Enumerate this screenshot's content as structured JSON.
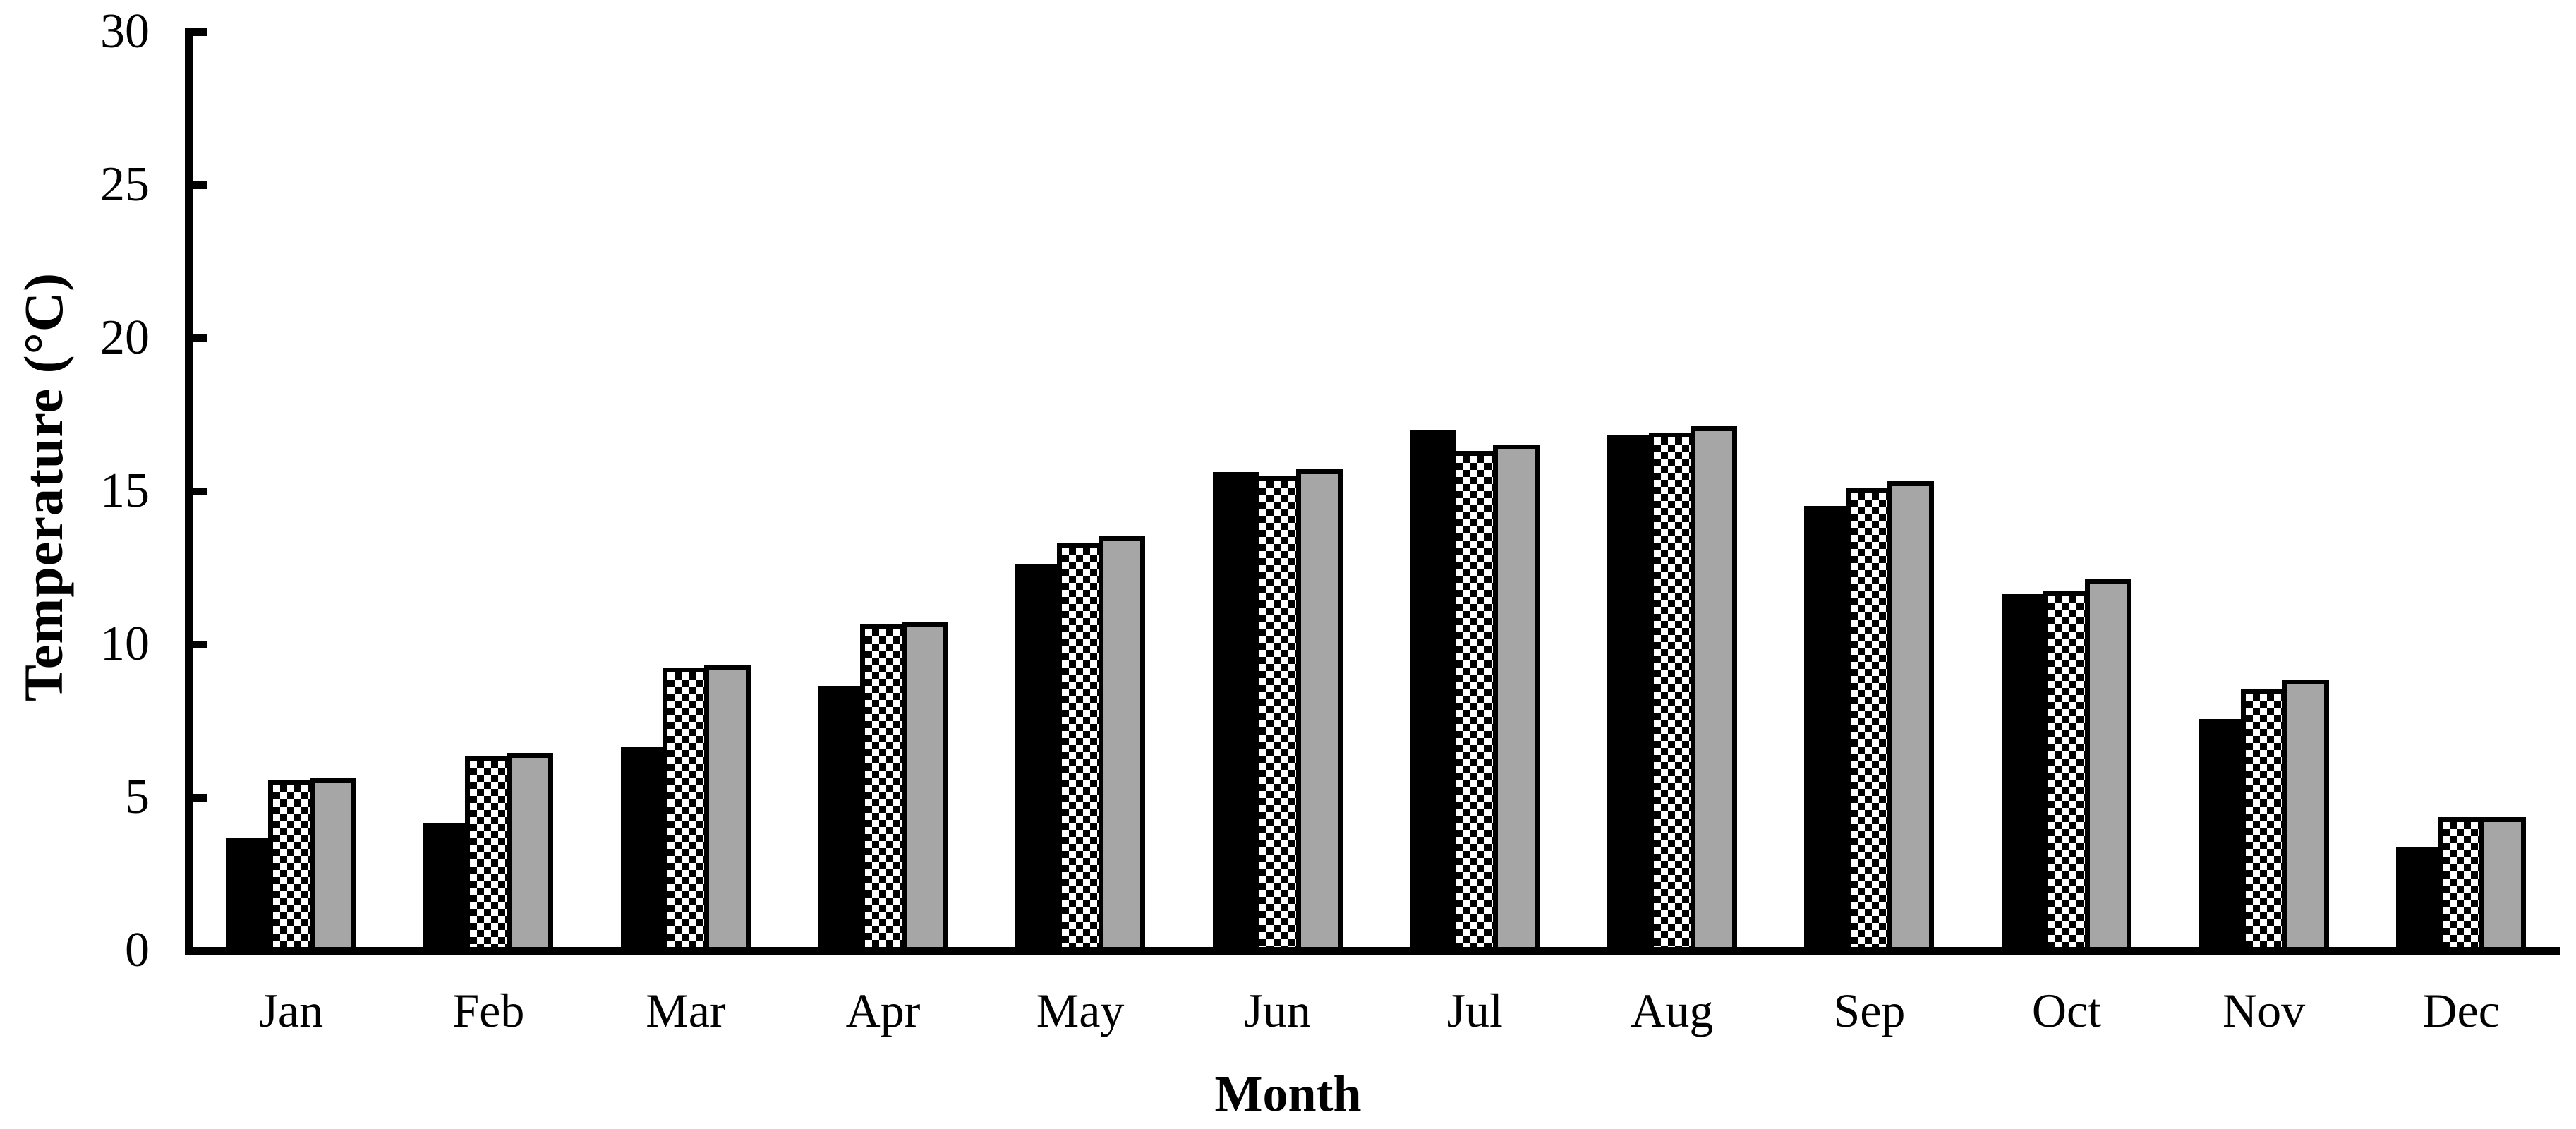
{
  "figure": {
    "background": "#ffffff"
  },
  "colors": {
    "axis": "#000000",
    "text": "#000000",
    "bar_black": "#000000",
    "bar_gray": "#a6a6a6",
    "bar_checker_foreground": "#000000",
    "bar_checker_background": "#ffffff"
  },
  "chart_data": {
    "type": "bar",
    "title": "",
    "xlabel": "Month",
    "ylabel": "Temperature (°C)",
    "ylim": [
      0,
      30
    ],
    "yticks": [
      0,
      5,
      10,
      15,
      20,
      25,
      30
    ],
    "grid": false,
    "legend": false,
    "categories": [
      "Jan",
      "Feb",
      "Mar",
      "Apr",
      "May",
      "Jun",
      "Jul",
      "Aug",
      "Sep",
      "Oct",
      "Nov",
      "Dec"
    ],
    "series": [
      {
        "name": "black",
        "pattern": "solid-black",
        "values": [
          3.4,
          3.9,
          6.4,
          8.4,
          12.4,
          15.4,
          16.8,
          16.6,
          14.3,
          11.4,
          7.3,
          3.1
        ]
      },
      {
        "name": "checkered",
        "pattern": "checkerboard",
        "values": [
          5.3,
          6.1,
          9.0,
          10.4,
          13.1,
          15.3,
          16.1,
          16.7,
          14.9,
          11.5,
          8.3,
          4.1
        ]
      },
      {
        "name": "gray",
        "pattern": "solid-gray",
        "values": [
          5.4,
          6.2,
          9.1,
          10.5,
          13.3,
          15.5,
          16.3,
          16.9,
          15.1,
          11.9,
          8.6,
          4.1
        ]
      }
    ]
  }
}
